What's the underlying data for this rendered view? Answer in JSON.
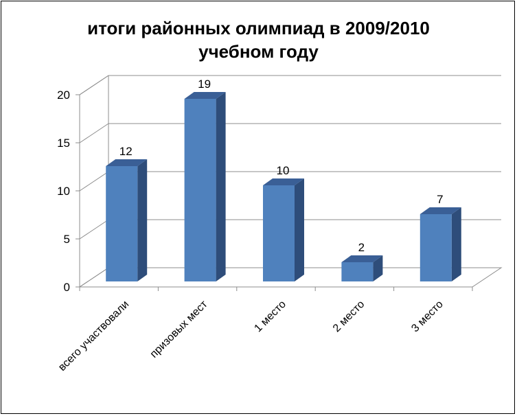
{
  "chart_data": {
    "type": "bar",
    "title_line1": "итоги районных олимпиад в 2009/2010",
    "title_line2": "учебном году",
    "categories": [
      "всего участвовали",
      "призовых мест",
      "1 место",
      "2 место",
      "3 место"
    ],
    "values": [
      12,
      19,
      10,
      2,
      7
    ],
    "data_labels": [
      "12",
      "19",
      "10",
      "2",
      "7"
    ],
    "y_ticks": [
      "0",
      "5",
      "10",
      "15",
      "20"
    ],
    "ylim": [
      0,
      20
    ],
    "grid": true,
    "legend": "none",
    "bar_color": "#4f81bd"
  }
}
